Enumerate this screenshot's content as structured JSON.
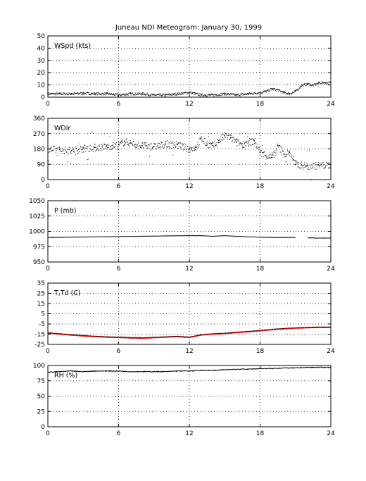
{
  "title": "Juneau NDI Meteogram:    January 30, 1999",
  "chart_data": [
    {
      "type": "scatter",
      "label": "WSpd (kts)",
      "xlim": [
        0,
        24
      ],
      "ylim": [
        0,
        50
      ],
      "xticks": [
        "0",
        "6",
        "12",
        "18",
        "24"
      ],
      "yticks": [
        "0",
        "10",
        "20",
        "30",
        "40",
        "50"
      ],
      "grid": true,
      "series": [
        {
          "color": "#000000",
          "x": [
            0,
            1,
            2,
            3,
            4,
            5,
            6,
            7,
            8,
            9,
            10,
            11,
            12,
            13,
            14,
            15,
            16,
            17,
            18,
            18.5,
            19,
            19.5,
            20,
            20.5,
            21,
            21.5,
            22,
            22.5,
            23,
            23.5,
            24
          ],
          "y": [
            3,
            3,
            3,
            3.5,
            3,
            3,
            2,
            3,
            3,
            2,
            2,
            3,
            4,
            2,
            2,
            3,
            2,
            3,
            4,
            5,
            7,
            6,
            4,
            3,
            5,
            10,
            11,
            10,
            12,
            12,
            12
          ]
        }
      ]
    },
    {
      "type": "scatter",
      "label": "WDir",
      "xlim": [
        0,
        24
      ],
      "ylim": [
        0,
        360
      ],
      "xticks": [
        "0",
        "6",
        "12",
        "18",
        "24"
      ],
      "yticks": [
        "0",
        "90",
        "180",
        "270",
        "360"
      ],
      "grid": true,
      "series": [
        {
          "color": "#000000",
          "x": [
            0,
            1,
            2,
            3,
            4,
            5,
            5.5,
            6,
            6.5,
            7,
            8,
            9,
            10,
            11,
            12,
            12.5,
            13,
            13.5,
            14,
            14.5,
            15,
            15.5,
            16,
            16.5,
            17,
            17.5,
            18,
            18.5,
            19,
            19.5,
            20,
            20.5,
            21,
            21.5,
            22,
            23,
            24
          ],
          "y": [
            180,
            175,
            170,
            185,
            190,
            195,
            200,
            205,
            225,
            215,
            200,
            195,
            210,
            205,
            180,
            190,
            240,
            210,
            200,
            230,
            260,
            245,
            220,
            210,
            220,
            230,
            160,
            140,
            130,
            200,
            150,
            160,
            90,
            85,
            80,
            85,
            85
          ]
        }
      ]
    },
    {
      "type": "line",
      "label": "P (mb)",
      "xlim": [
        0,
        24
      ],
      "ylim": [
        950,
        1050
      ],
      "xticks": [
        "0",
        "6",
        "12",
        "18",
        "24"
      ],
      "yticks": [
        "950",
        "975",
        "1000",
        "1025",
        "1050"
      ],
      "grid": true,
      "series": [
        {
          "color": "#000000",
          "x": [
            0,
            2,
            4,
            6,
            8,
            10,
            12,
            13,
            14,
            15,
            16,
            17,
            18,
            19,
            20,
            21,
            21.5,
            22,
            23,
            24
          ],
          "y": [
            990,
            990.5,
            991,
            991.5,
            992,
            992.5,
            993,
            993,
            992,
            993,
            992,
            991,
            990.5,
            990,
            990,
            990,
            null,
            989.5,
            989,
            989
          ]
        }
      ]
    },
    {
      "type": "line",
      "label": "T,Td (C)",
      "xlim": [
        0,
        24
      ],
      "ylim": [
        -25,
        35
      ],
      "xticks": [
        "0",
        "6",
        "12",
        "18",
        "24"
      ],
      "yticks": [
        "-25",
        "-15",
        "-5",
        "5",
        "15",
        "25",
        "35"
      ],
      "grid": true,
      "series": [
        {
          "color": "#000000",
          "x": [
            0,
            1,
            2,
            3,
            4,
            5,
            6,
            7,
            8,
            9,
            10,
            11,
            12,
            13,
            14,
            15,
            16,
            17,
            18,
            19,
            20,
            21,
            22,
            23,
            24
          ],
          "y": [
            -13.5,
            -14.5,
            -15.5,
            -16.3,
            -17,
            -17.5,
            -17.8,
            -18.2,
            -18.5,
            -18,
            -17.5,
            -17,
            -17.8,
            -15.5,
            -14.5,
            -14,
            -13,
            -12.2,
            -11.3,
            -10.2,
            -9.4,
            -8.7,
            -8.3,
            -8,
            -8
          ]
        },
        {
          "color": "#dd0000",
          "x": [
            0,
            1,
            2,
            3,
            4,
            5,
            6,
            7,
            8,
            9,
            10,
            11,
            12,
            13,
            14,
            15,
            16,
            17,
            18,
            19,
            20,
            21,
            22,
            23,
            24
          ],
          "y": [
            -14,
            -15,
            -16,
            -16.8,
            -17.5,
            -18,
            -18.3,
            -18.8,
            -19,
            -18.5,
            -18,
            -17.5,
            -18.3,
            -16,
            -15,
            -14.5,
            -13.5,
            -12.7,
            -11.8,
            -10.7,
            -9.9,
            -9.2,
            -8.8,
            -8.5,
            -8.5
          ]
        }
      ]
    },
    {
      "type": "line",
      "label": "RH (%)",
      "xlim": [
        0,
        24
      ],
      "ylim": [
        0,
        100
      ],
      "xticks": [
        "0",
        "6",
        "12",
        "18",
        "24"
      ],
      "yticks": [
        "0",
        "25",
        "50",
        "75",
        "100"
      ],
      "grid": true,
      "series": [
        {
          "color": "#000000",
          "x": [
            0,
            1,
            2,
            3,
            4,
            5,
            6,
            7,
            8,
            9,
            10,
            11,
            12,
            13,
            14,
            15,
            16,
            17,
            18,
            19,
            20,
            21,
            22,
            23,
            24
          ],
          "y": [
            89,
            90,
            91,
            90,
            91,
            91,
            91,
            90,
            90,
            90,
            90,
            91,
            91,
            92,
            92,
            93,
            94,
            94,
            95,
            95,
            96,
            96,
            97,
            97,
            97
          ]
        }
      ]
    }
  ]
}
